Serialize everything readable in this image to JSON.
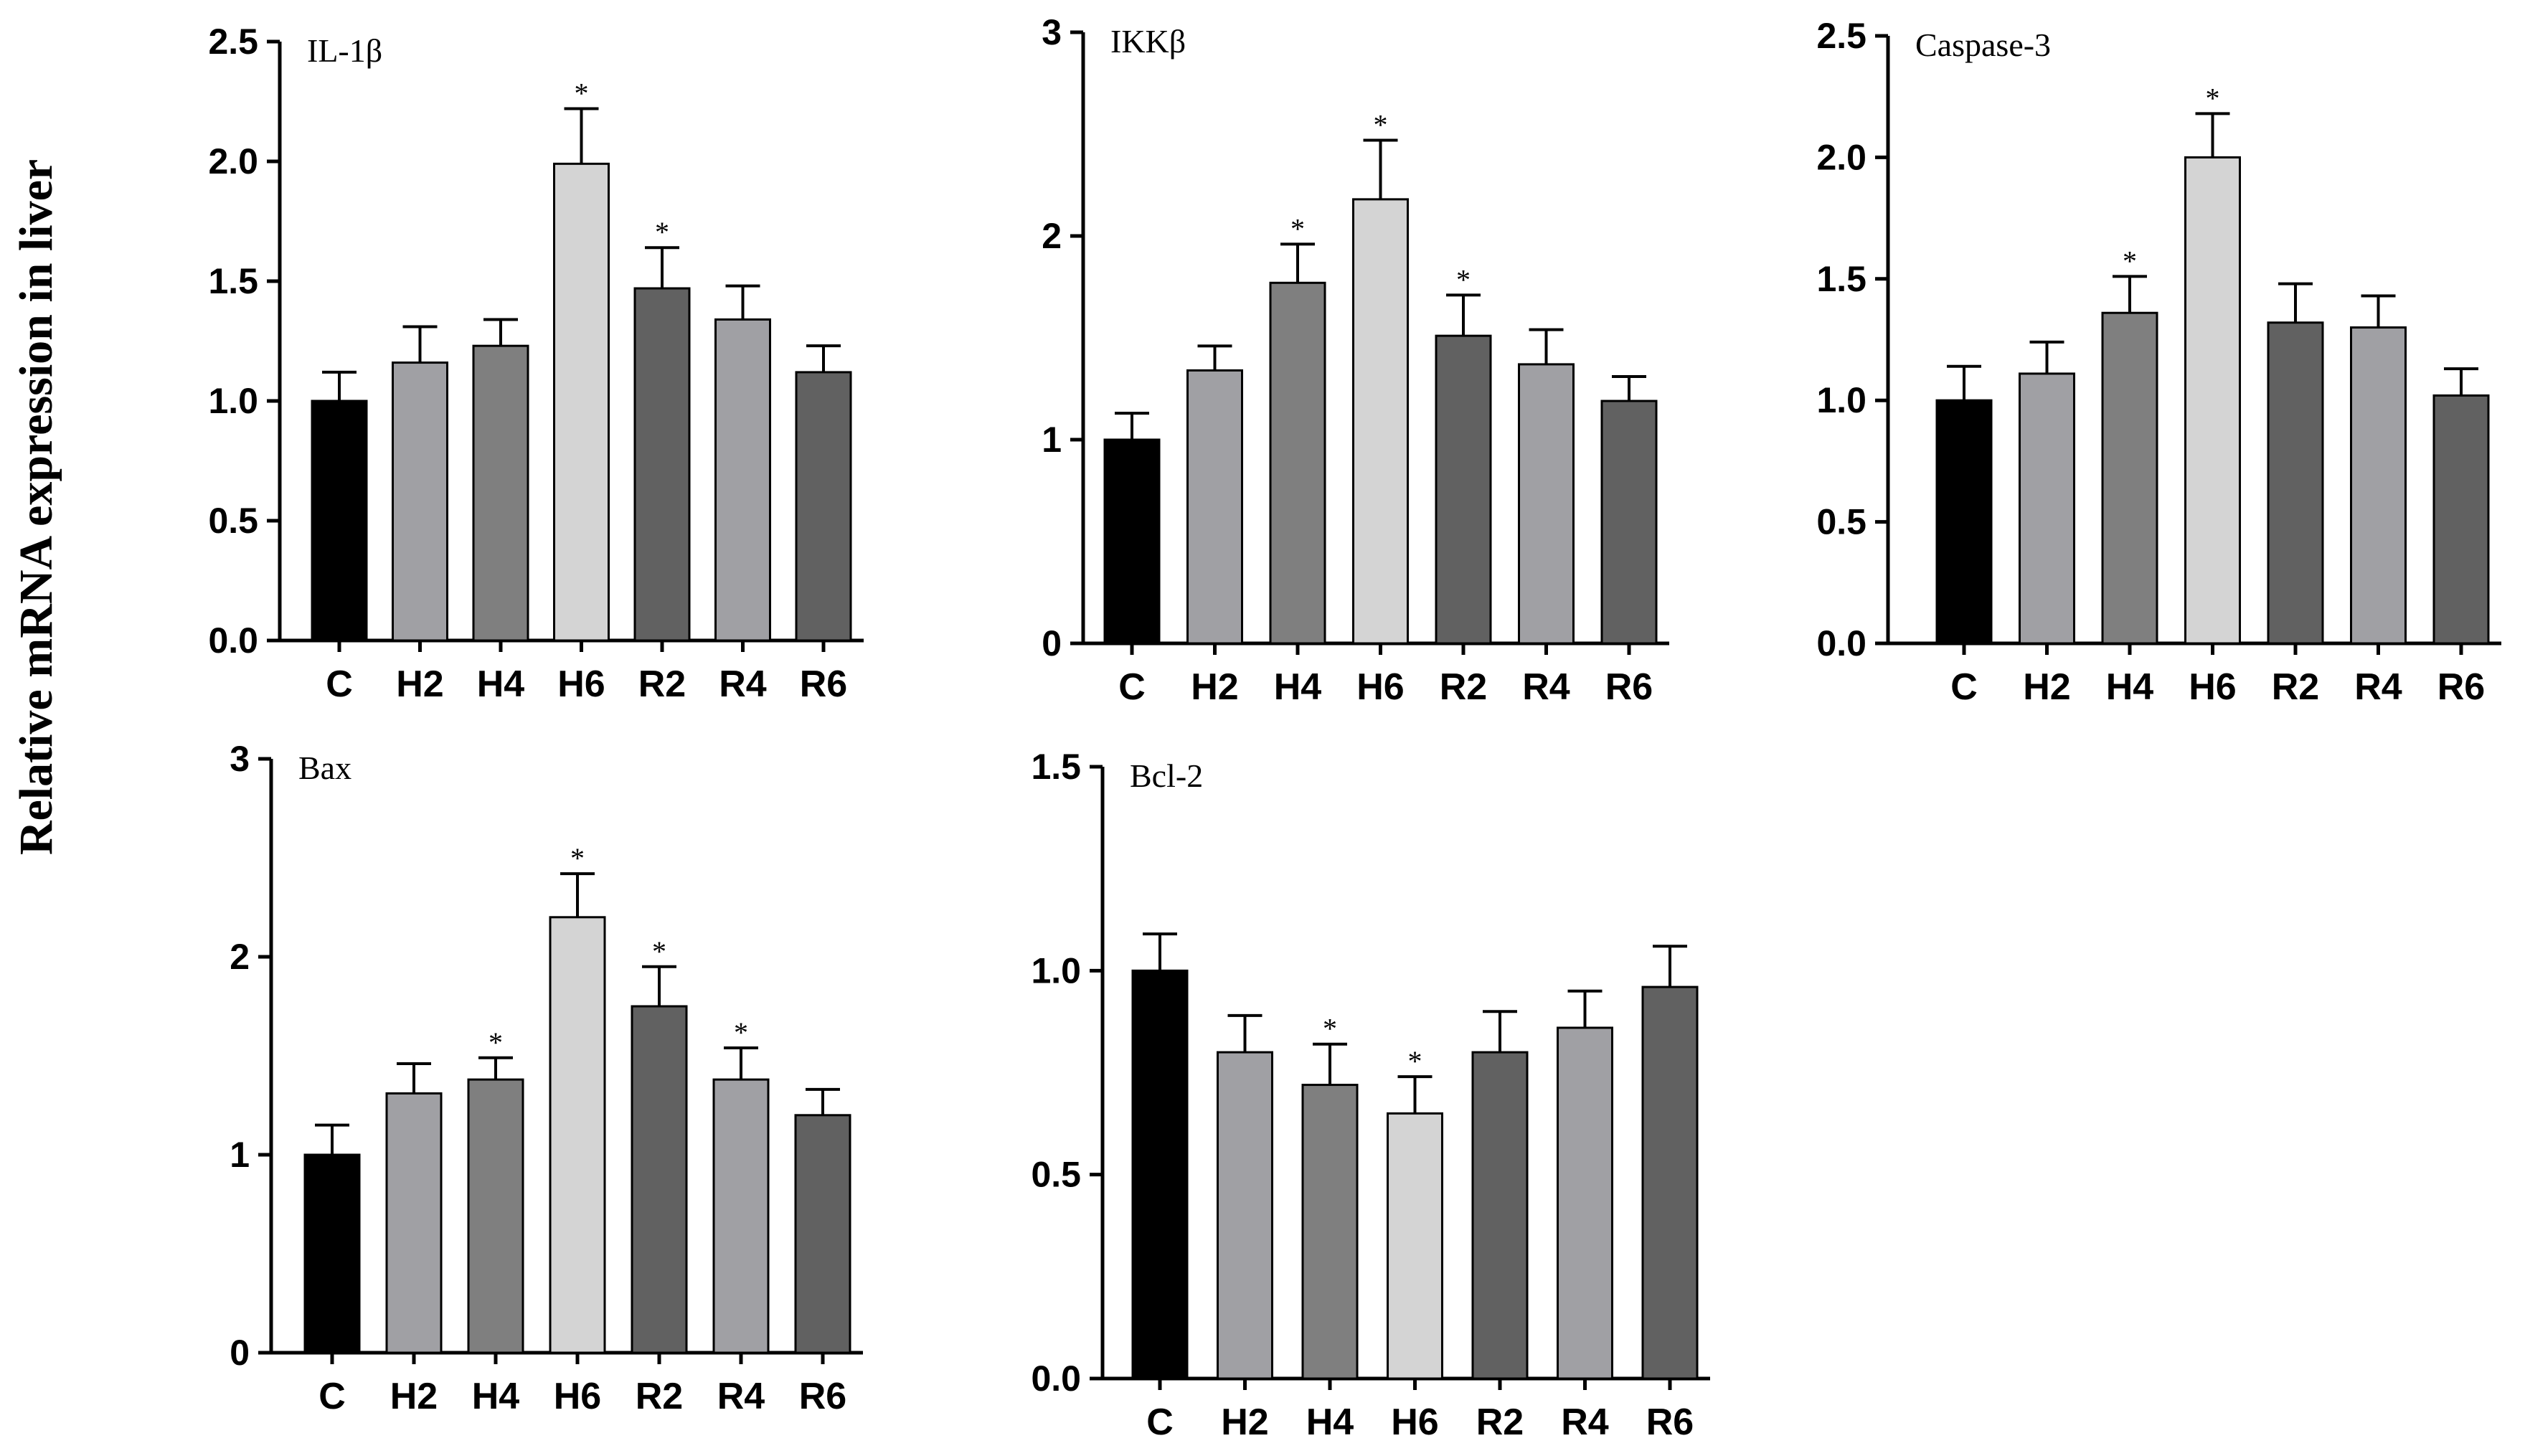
{
  "ylabel": "Relative mRNA expression in liver",
  "chart_data": [
    {
      "type": "bar",
      "title": "IL-1β",
      "categories": [
        "C",
        "H2",
        "H4",
        "H6",
        "R2",
        "R4",
        "R6"
      ],
      "values": [
        1.0,
        1.16,
        1.23,
        1.99,
        1.47,
        1.34,
        1.12
      ],
      "errors": [
        0.12,
        0.15,
        0.11,
        0.23,
        0.17,
        0.14,
        0.11
      ],
      "significant": [
        false,
        false,
        false,
        true,
        true,
        false,
        false
      ],
      "ylim": [
        0,
        2.5
      ],
      "yticks": [
        0.0,
        0.5,
        1.0,
        1.5,
        2.0,
        2.5
      ],
      "ytick_labels": [
        "0.0",
        "0.5",
        "1.0",
        "1.5",
        "2.0",
        "2.5"
      ]
    },
    {
      "type": "bar",
      "title": "IKKβ",
      "categories": [
        "C",
        "H2",
        "H4",
        "H6",
        "R2",
        "R4",
        "R6"
      ],
      "values": [
        1.0,
        1.34,
        1.77,
        2.18,
        1.51,
        1.37,
        1.19
      ],
      "errors": [
        0.13,
        0.12,
        0.19,
        0.29,
        0.2,
        0.17,
        0.12
      ],
      "significant": [
        false,
        false,
        true,
        true,
        true,
        false,
        false
      ],
      "ylim": [
        0,
        3
      ],
      "yticks": [
        0,
        1,
        2,
        3
      ],
      "ytick_labels": [
        "0",
        "1",
        "2",
        "3"
      ]
    },
    {
      "type": "bar",
      "title": "Caspase-3",
      "categories": [
        "C",
        "H2",
        "H4",
        "H6",
        "R2",
        "R4",
        "R6"
      ],
      "values": [
        1.0,
        1.11,
        1.36,
        2.0,
        1.32,
        1.3,
        1.02
      ],
      "errors": [
        0.14,
        0.13,
        0.15,
        0.18,
        0.16,
        0.13,
        0.11
      ],
      "significant": [
        false,
        false,
        true,
        true,
        false,
        false,
        false
      ],
      "ylim": [
        0,
        2.5
      ],
      "yticks": [
        0.0,
        0.5,
        1.0,
        1.5,
        2.0,
        2.5
      ],
      "ytick_labels": [
        "0.0",
        "0.5",
        "1.0",
        "1.5",
        "2.0",
        "2.5"
      ]
    },
    {
      "type": "bar",
      "title": "Bax",
      "categories": [
        "C",
        "H2",
        "H4",
        "H6",
        "R2",
        "R4",
        "R6"
      ],
      "values": [
        1.0,
        1.31,
        1.38,
        2.2,
        1.75,
        1.38,
        1.2
      ],
      "errors": [
        0.15,
        0.15,
        0.11,
        0.22,
        0.2,
        0.16,
        0.13
      ],
      "significant": [
        false,
        false,
        true,
        true,
        true,
        true,
        false
      ],
      "ylim": [
        0,
        3
      ],
      "yticks": [
        0,
        1,
        2,
        3
      ],
      "ytick_labels": [
        "0",
        "1",
        "2",
        "3"
      ]
    },
    {
      "type": "bar",
      "title": "Bcl-2",
      "categories": [
        "C",
        "H2",
        "H4",
        "H6",
        "R2",
        "R4",
        "R6"
      ],
      "values": [
        1.0,
        0.8,
        0.72,
        0.65,
        0.8,
        0.86,
        0.96
      ],
      "errors": [
        0.09,
        0.09,
        0.1,
        0.09,
        0.1,
        0.09,
        0.1
      ],
      "significant": [
        false,
        false,
        true,
        true,
        false,
        false,
        false
      ],
      "ylim": [
        0,
        1.5
      ],
      "yticks": [
        0.0,
        0.5,
        1.0,
        1.5
      ],
      "ytick_labels": [
        "0.0",
        "0.5",
        "1.0",
        "1.5"
      ]
    }
  ],
  "bar_colors": [
    "#000000",
    "#a0a0a4",
    "#7f7f7f",
    "#d4d4d4",
    "#616161",
    "#a0a0a4",
    "#616161"
  ],
  "significance_marker": "*"
}
